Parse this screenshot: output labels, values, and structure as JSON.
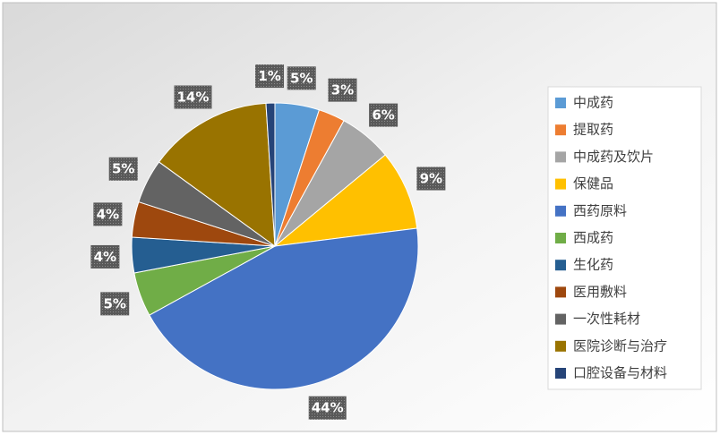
{
  "chart_data": {
    "type": "pie",
    "categories": [
      "中成药",
      "提取药",
      "中成药及饮片",
      "保健品",
      "西药原料",
      "西成药",
      "生化药",
      "医用敷料",
      "一次性耗材",
      "医院诊断与治疗",
      "口腔设备与材料"
    ],
    "values": [
      5,
      3,
      6,
      9,
      44,
      5,
      4,
      4,
      5,
      14,
      1
    ],
    "value_labels": [
      "5%",
      "3%",
      "6%",
      "9%",
      "44%",
      "5%",
      "4%",
      "4%",
      "5%",
      "14%",
      "1%"
    ],
    "colors": [
      "#5b9bd5",
      "#ed7d31",
      "#a5a5a5",
      "#ffc000",
      "#4472c4",
      "#70ad47",
      "#255e91",
      "#9e480e",
      "#636363",
      "#997300",
      "#264478"
    ]
  }
}
